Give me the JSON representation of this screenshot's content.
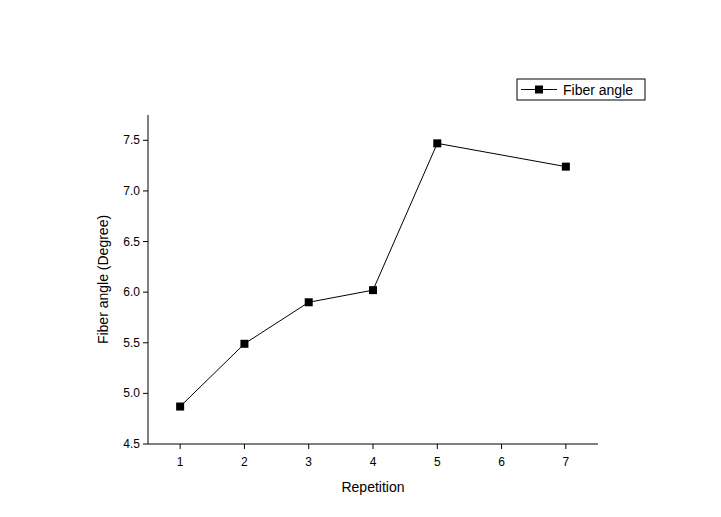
{
  "chart_data": {
    "type": "line",
    "x_label": "Repetition",
    "y_label": "Fiber angle (Degree)",
    "x": [
      1,
      2,
      3,
      4,
      5,
      7
    ],
    "series": [
      {
        "name": "Fiber angle",
        "color": "#000000",
        "marker": "square",
        "line_style": "solid",
        "values": [
          4.87,
          5.49,
          5.9,
          6.02,
          7.47,
          7.24
        ]
      }
    ],
    "xlim": [
      0.5,
      7.5
    ],
    "xticks": [
      1,
      2,
      3,
      4,
      5,
      6,
      7
    ],
    "ylim": [
      4.5,
      7.75
    ],
    "yticks": [
      4.5,
      {
        "value": 5,
        "label": "5.0"
      },
      5.5,
      {
        "value": 6,
        "label": "6.0"
      },
      6.5,
      {
        "value": 7,
        "label": "7.0"
      },
      7.5
    ],
    "grid": false,
    "legend": "upper right"
  }
}
